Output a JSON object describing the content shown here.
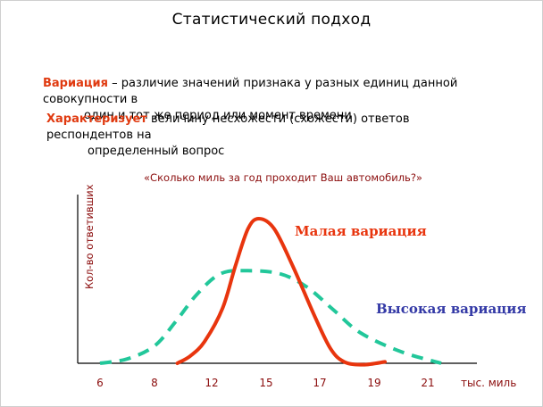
{
  "title": "Статистический подход",
  "definitions": [
    {
      "term": "Вариация",
      "separator": " – ",
      "line1": "различие значений признака у разных единиц данной совокупности в",
      "line2": "один и тот же период или момент времени"
    },
    {
      "term": "Характеризует",
      "separator": " ",
      "line1": "величину несхожести (схожести) ответов респондентов на",
      "line2": "определенный вопрос"
    }
  ],
  "question": "«Сколько миль за год проходит Ваш автомобиль?»",
  "chart_data": {
    "type": "line",
    "ylabel": "Кол-во ответивших",
    "xlabel": "тыс. миль",
    "x_ticks": [
      "6",
      "8",
      "12",
      "15",
      "17",
      "19",
      "21"
    ],
    "series": [
      {
        "name": "Малая вариация",
        "color": "#e8350e",
        "style": "solid",
        "points": [
          [
            9.6,
            0
          ],
          [
            10.5,
            0.05
          ],
          [
            11.5,
            0.15
          ],
          [
            12.6,
            0.38
          ],
          [
            13.3,
            0.67
          ],
          [
            14.0,
            0.93
          ],
          [
            14.6,
            1.0
          ],
          [
            15.3,
            0.93
          ],
          [
            16.0,
            0.67
          ],
          [
            16.8,
            0.33
          ],
          [
            17.4,
            0.1
          ],
          [
            17.9,
            0.01
          ],
          [
            18.6,
            -0.01
          ],
          [
            19.4,
            0.01
          ]
        ]
      },
      {
        "name": "Высокая вариация",
        "color": "#22c79a",
        "style": "dashed",
        "points": [
          [
            6.0,
            0.0
          ],
          [
            7.0,
            0.03
          ],
          [
            8.0,
            0.12
          ],
          [
            9.5,
            0.29
          ],
          [
            11.0,
            0.48
          ],
          [
            12.5,
            0.62
          ],
          [
            14.0,
            0.64
          ],
          [
            15.5,
            0.62
          ],
          [
            16.5,
            0.53
          ],
          [
            17.5,
            0.37
          ],
          [
            18.5,
            0.21
          ],
          [
            20.0,
            0.08
          ],
          [
            21.5,
            0.0
          ]
        ]
      }
    ],
    "colors": {
      "axis": "#000000",
      "text": "#8b0d0d",
      "low": "#e8350e",
      "high": "#3339a6"
    }
  }
}
